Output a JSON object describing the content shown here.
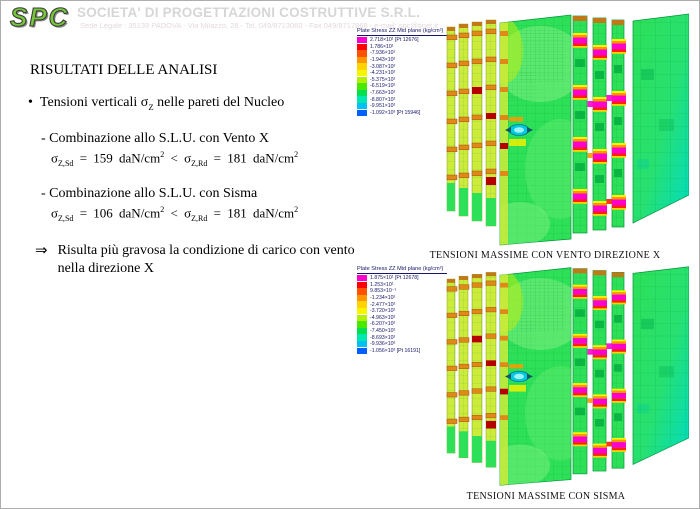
{
  "header": {
    "logo_text": "SPC",
    "company_name": "SOCIETA' DI PROGETTAZIONI COSTRUTTIVE S.R.L.",
    "company_address": "Sede Legale : 35139 PADOVA - Via Milazzo, 28 - Tel. 049/8713060 - Fax 049/8717868 - e-mail: spc@tinet.it"
  },
  "content": {
    "title": "RISULTATI DELLE ANALISI",
    "bullet": {
      "marker": "•",
      "pre": "Tensioni verticali ",
      "sigma": "σ",
      "sub": "Z",
      "post": " nelle pareti del Nucleo"
    },
    "combo_vento": {
      "label": "- Combinazione allo S.L.U. con Vento X",
      "formula": {
        "sigma": "σ",
        "sub_sd": "Z,Sd",
        "eq_sd": " = 159 daN/cm",
        "sup": "2",
        "lt": " < ",
        "sub_rd": "Z,Rd",
        "eq_rd": " = 181 daN/cm"
      }
    },
    "combo_sisma": {
      "label": "- Combinazione allo S.L.U. con Sisma",
      "formula": {
        "sigma": "σ",
        "sub_sd": "Z,Sd",
        "eq_sd": " = 106 daN/cm",
        "sup": "2",
        "lt": " < ",
        "sub_rd": "Z,Rd",
        "eq_rd": " = 181 daN/cm"
      }
    },
    "conclusion": {
      "arrow": "⇒",
      "text": "Risulta più gravosa la condizione di carico con vento nella direzione X"
    }
  },
  "figures": [
    {
      "caption": "TENSIONI MASSIME CON VENTO DIREZIONE X",
      "legend_title": "Plate Stress ZZ Mid plane (kg/cm²)",
      "legend_entries": [
        {
          "color": "#ff00cc",
          "label": "2.718×10¹ [Pt 12676]"
        },
        {
          "color": "#ff0000",
          "label": "1.786×10¹"
        },
        {
          "color": "#ff5200",
          "label": "-7.936×10¹"
        },
        {
          "color": "#ff9600",
          "label": "-1.943×10²"
        },
        {
          "color": "#ffd200",
          "label": "-3.087×10²"
        },
        {
          "color": "#f6f600",
          "label": "-4.231×10²"
        },
        {
          "color": "#b0f000",
          "label": "-5.375×10²"
        },
        {
          "color": "#48e800",
          "label": "-6.519×10²"
        },
        {
          "color": "#00e050",
          "label": "-7.663×10²"
        },
        {
          "color": "#00e8b0",
          "label": "-8.807×10²"
        },
        {
          "color": "#00c0f8",
          "label": "-9.951×10²"
        },
        {
          "color": "#0060ff",
          "label": "-1.092×10³ [Pt 15946]"
        }
      ]
    },
    {
      "caption": "TENSIONI MASSIME CON SISMA",
      "legend_title": "Plate Stress ZZ Mid plane (kg/cm²)",
      "legend_entries": [
        {
          "color": "#ff00cc",
          "label": "1.875×10¹ [Pt 12678]"
        },
        {
          "color": "#ff0000",
          "label": "1.253×10¹"
        },
        {
          "color": "#ff5200",
          "label": "9.853×10⁻¹"
        },
        {
          "color": "#ff9600",
          "label": "-1.234×10²"
        },
        {
          "color": "#ffd200",
          "label": "-2.477×10²"
        },
        {
          "color": "#f6f600",
          "label": "-3.720×10²"
        },
        {
          "color": "#b0f000",
          "label": "-4.963×10²"
        },
        {
          "color": "#48e800",
          "label": "-6.207×10²"
        },
        {
          "color": "#00e050",
          "label": "-7.450×10²"
        },
        {
          "color": "#00e8b0",
          "label": "-8.693×10²"
        },
        {
          "color": "#00c0f8",
          "label": "-9.936×10²"
        },
        {
          "color": "#0060ff",
          "label": "-1.056×10³ [Pt 16191]"
        }
      ]
    }
  ],
  "colors": {
    "logo_green": "#76c838",
    "fem_green": "#2ee058",
    "hotspot_magenta": "#ff00cc",
    "legend_text_navy": "#15156b"
  }
}
